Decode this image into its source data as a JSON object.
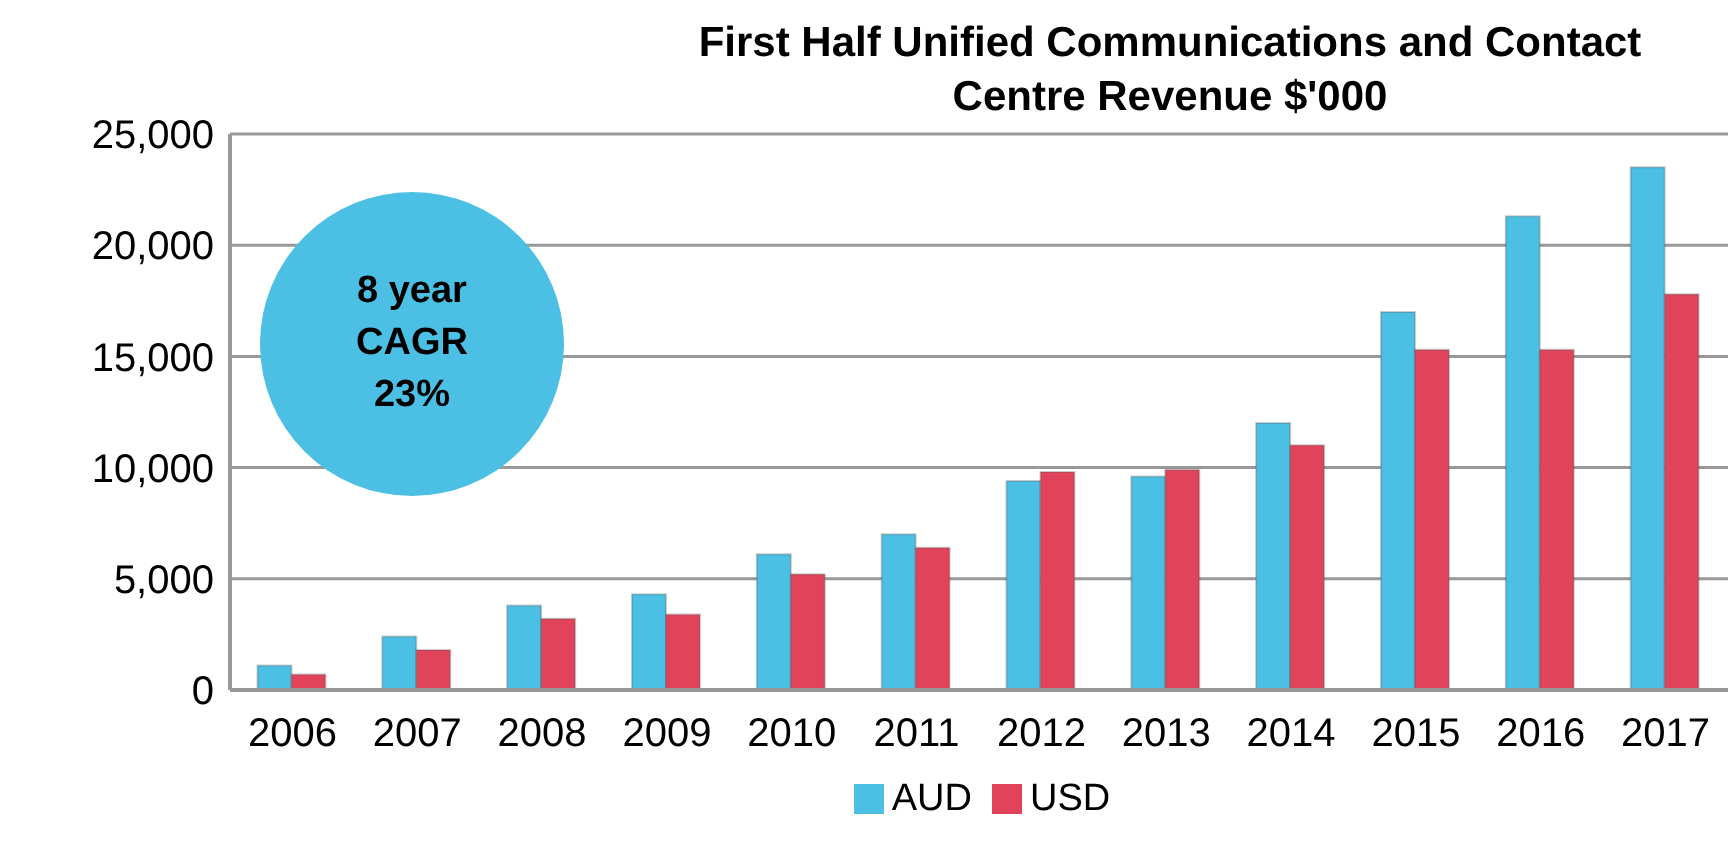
{
  "chart_data": {
    "type": "bar",
    "title": "First Half Unified Communications and Contact Centre Revenue $'000",
    "categories": [
      "2006",
      "2007",
      "2008",
      "2009",
      "2010",
      "2011",
      "2012",
      "2013",
      "2014",
      "2015",
      "2016",
      "2017"
    ],
    "series": [
      {
        "name": "AUD",
        "color": "#4bc0e4",
        "values": [
          1100,
          2400,
          3800,
          4300,
          6100,
          7000,
          9400,
          9600,
          12000,
          17000,
          21300,
          23500
        ]
      },
      {
        "name": "USD",
        "color": "#e0435a",
        "values": [
          700,
          1800,
          3200,
          3400,
          5200,
          6400,
          9800,
          9900,
          11000,
          15300,
          15300,
          17800
        ]
      }
    ],
    "ylim": [
      0,
      25000
    ],
    "yticks": [
      0,
      {
        "value": 5000,
        "label": "5,000"
      },
      {
        "value": 10000,
        "label": "10,000"
      },
      {
        "value": 15000,
        "label": "15,000"
      },
      {
        "value": 20000,
        "label": "20,000"
      },
      {
        "value": 25000,
        "label": "25,000"
      }
    ],
    "grid": "y",
    "legend": "bottom",
    "annotations": [
      "8 year\nCAGR\n23%"
    ]
  }
}
